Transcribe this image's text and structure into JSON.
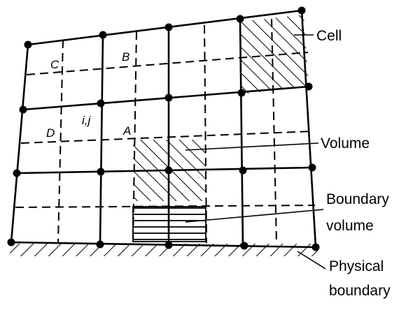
{
  "labels": {
    "c": "C",
    "b": "B",
    "ij": "i,j",
    "d": "D",
    "a": "A",
    "cell": "Cell",
    "volume": "Volume",
    "boundary_volume_1": "Boundary",
    "boundary_volume_2": "volume",
    "physical_boundary_1": "Physical",
    "physical_boundary_2": "boundary"
  },
  "colors": {
    "ink": "#000000",
    "background": "#ffffff"
  }
}
